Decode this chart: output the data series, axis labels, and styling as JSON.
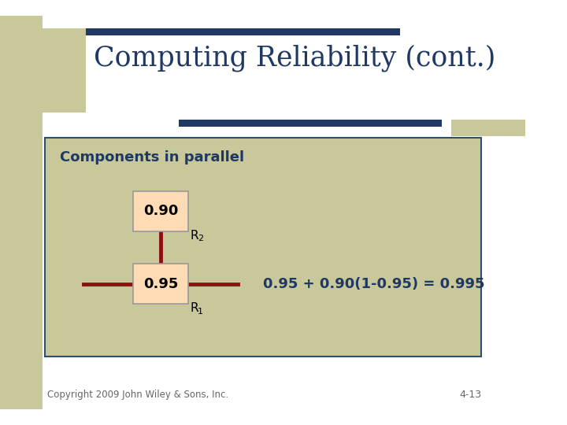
{
  "title": "Computing Reliability (cont.)",
  "title_color": "#1F3864",
  "bg_color": "#FFFFFF",
  "content_box_color": "#C8C89A",
  "content_box_edge": "#2F4F6F",
  "accent_bar_color": "#1F3864",
  "accent_rect_color": "#C8C89A",
  "left_stripe_color": "#C8C89A",
  "section_label": "Components in parallel",
  "section_label_color": "#1F3864",
  "box_fill": "#FDDCB5",
  "box_edge": "#999999",
  "line_color": "#8B1010",
  "val1": "0.90",
  "val2": "0.95",
  "equation": "0.95 + 0.90(1-0.95) = 0.995",
  "equation_color": "#1F3864",
  "copyright": "Copyright 2009 John Wiley & Sons, Inc.",
  "page_num": "4-13",
  "footer_color": "#666666"
}
